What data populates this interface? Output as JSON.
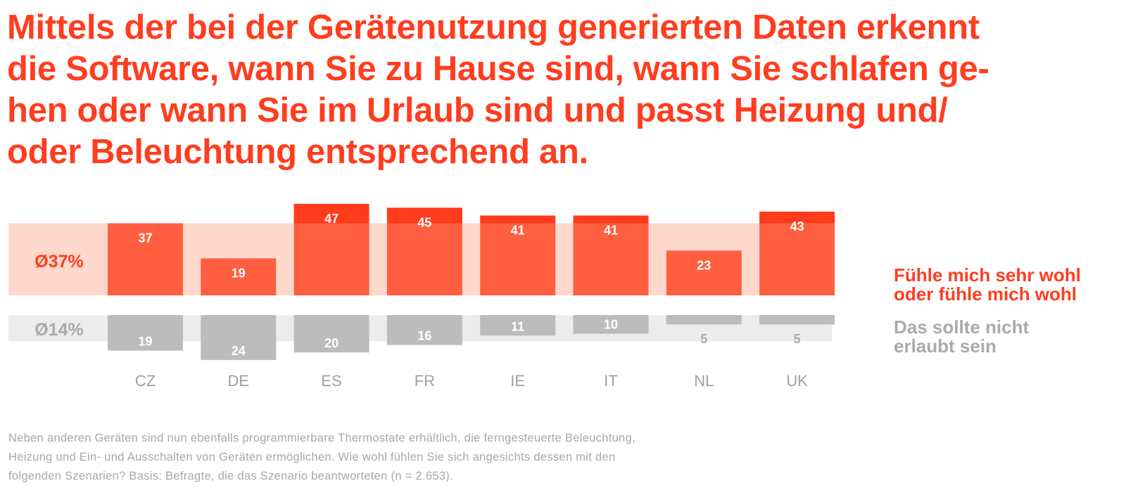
{
  "title_lines": [
    "Mittels der bei der Gerätenutzung generierten Daten erkennt",
    "die Software, wann Sie zu Hause sind, wann Sie schlafen ge-",
    "hen oder wann Sie im Urlaub sind und passt Heizung und/",
    "oder Beleuchtung entsprechend an."
  ],
  "legend": {
    "positive": [
      "Fühle mich sehr wohl",
      "oder fühle mich wohl"
    ],
    "negative": [
      "Das sollte nicht",
      "erlaubt sein"
    ]
  },
  "footnote_lines": [
    "Neben anderen Geräten sind nun ebenfalls programmierbare Thermostate erhältlich, die ferngesteuerte Beleuchtung,",
    "Heizung und Ein- und Ausschalten von Geräten ermöglichen. Wie wohl fühlen Sie sich angesichts dessen mit den",
    "folgenden Szenarien? Basis: Befragte, die das Szenario beantworteten (n = 2.653)."
  ],
  "colors": {
    "accent": "#ff3d1f",
    "bar_positive": "#ff5f40",
    "bar_positive_above_avg": "#ff3b1c",
    "avg_band_positive": "#ffd8cc",
    "bar_negative": "#bcbcbc",
    "avg_band_negative": "#ececec",
    "negative_text": "#aaaaaa",
    "category_text": "#a0a0a0"
  },
  "chart_data": {
    "type": "bar",
    "categories": [
      "CZ",
      "DE",
      "ES",
      "FR",
      "IE",
      "IT",
      "NL",
      "UK"
    ],
    "series": [
      {
        "name": "Fühle mich sehr wohl oder fühle mich wohl",
        "values": [
          37,
          19,
          47,
          45,
          41,
          41,
          23,
          43
        ]
      },
      {
        "name": "Das sollte nicht erlaubt sein",
        "values": [
          19,
          24,
          20,
          16,
          11,
          10,
          5,
          5
        ]
      }
    ],
    "averages": [
      {
        "label": "Ø37%",
        "value": 37
      },
      {
        "label": "Ø14%",
        "value": 14
      }
    ]
  }
}
